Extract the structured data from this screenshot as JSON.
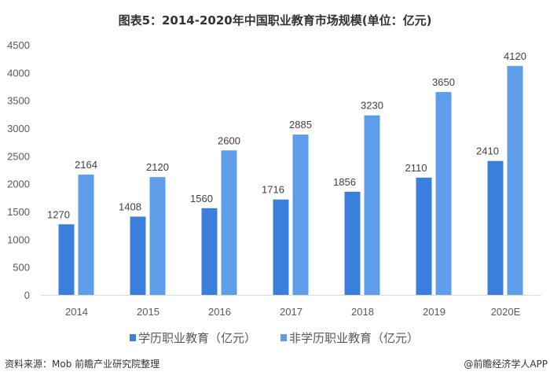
{
  "chart_data": {
    "type": "bar",
    "title": "图表5：2014-2020年中国职业教育市场规模(单位：亿元)",
    "categories": [
      "2014",
      "2015",
      "2016",
      "2017",
      "2018",
      "2019",
      "2020E"
    ],
    "series": [
      {
        "name": "学历职业教育（亿元）",
        "color": "#3b7fdc",
        "values": [
          1270,
          1408,
          1560,
          1716,
          1856,
          2110,
          2410
        ]
      },
      {
        "name": "非学历职业教育（亿元）",
        "color": "#5d9de9",
        "values": [
          2164,
          2120,
          2600,
          2885,
          3230,
          3650,
          4120
        ]
      }
    ],
    "yticks": [
      0,
      500,
      1000,
      1500,
      2000,
      2500,
      3000,
      3500,
      4000,
      4500
    ],
    "ylim": [
      0,
      4500
    ],
    "grid": false,
    "legend": "bottom",
    "xlabel": "",
    "ylabel": ""
  },
  "footer": {
    "source": "资料来源：Mob 前瞻产业研究院整理",
    "credit": "@前瞻经济学人APP"
  }
}
